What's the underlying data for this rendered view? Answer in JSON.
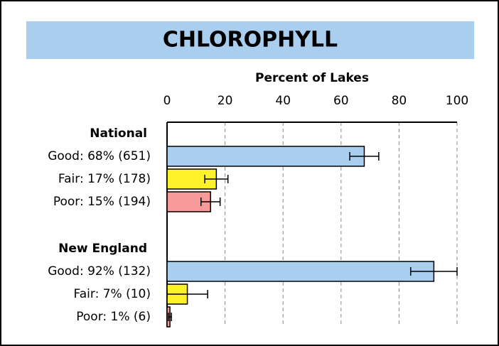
{
  "chart_data": {
    "type": "bar",
    "orientation": "horizontal",
    "title": "CHLOROPHYLL",
    "xlabel": "Percent of Lakes",
    "xlim": [
      0,
      100
    ],
    "xticks": [
      0,
      20,
      40,
      60,
      80,
      100
    ],
    "grid": true,
    "colors": [
      "#aacfee",
      "#fff12a",
      "#f89a9a"
    ],
    "groups": [
      {
        "name": "National",
        "categories": [
          "Good: 68% (651)",
          "Fair: 17% (178)",
          "Poor: 15% (194)"
        ],
        "values": [
          68,
          17,
          15
        ],
        "errors": [
          5,
          4,
          3.3
        ]
      },
      {
        "name": "New England",
        "categories": [
          "Good: 92% (132)",
          "Fair: 7% (10)",
          "Poor: 1% (6)"
        ],
        "values": [
          92,
          7,
          1
        ],
        "errors": [
          8,
          7,
          0.5
        ]
      }
    ]
  }
}
